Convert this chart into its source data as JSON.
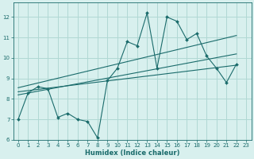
{
  "xlabel": "Humidex (Indice chaleur)",
  "bg_color": "#d8f0ee",
  "grid_color": "#b0d8d4",
  "line_color": "#1a6b6b",
  "xlim": [
    -0.5,
    23.5
  ],
  "ylim": [
    6,
    12.7
  ],
  "yticks": [
    6,
    7,
    8,
    9,
    10,
    11,
    12
  ],
  "xticks": [
    0,
    1,
    2,
    3,
    4,
    5,
    6,
    7,
    8,
    9,
    10,
    11,
    12,
    13,
    14,
    15,
    16,
    17,
    18,
    19,
    20,
    21,
    22,
    23
  ],
  "main_line_x": [
    0,
    1,
    2,
    3,
    4,
    5,
    6,
    7,
    8,
    9,
    10,
    11,
    12,
    13,
    14,
    15,
    16,
    17,
    18,
    19,
    20,
    21,
    22
  ],
  "main_line_y": [
    7.0,
    8.3,
    8.6,
    8.5,
    7.1,
    7.3,
    7.0,
    6.9,
    6.1,
    8.9,
    9.5,
    10.8,
    10.6,
    12.2,
    9.5,
    12.0,
    11.8,
    10.9,
    11.2,
    10.1,
    9.5,
    8.8,
    9.7
  ],
  "line1_x": [
    0,
    22
  ],
  "line1_y": [
    8.2,
    10.2
  ],
  "line2_x": [
    0,
    22
  ],
  "line2_y": [
    8.55,
    11.1
  ],
  "line3_x": [
    0,
    22
  ],
  "line3_y": [
    8.35,
    9.65
  ]
}
